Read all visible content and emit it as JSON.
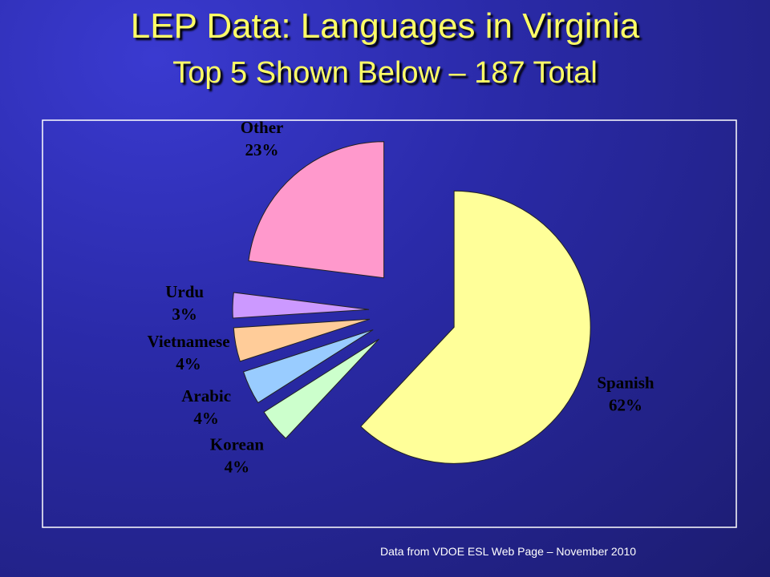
{
  "chart_data": {
    "type": "pie",
    "title": "LEP Data: Languages in Virginia",
    "subtitle": "Top 5 Shown Below – 187 Total",
    "categories": [
      "Spanish",
      "Korean",
      "Arabic",
      "Vietnamese",
      "Urdu",
      "Other"
    ],
    "values": [
      62,
      4,
      4,
      4,
      3,
      23
    ],
    "value_labels": [
      "62%",
      "4%",
      "4%",
      "4%",
      "3%",
      "23%"
    ],
    "colors": [
      "#ffff99",
      "#ccffcc",
      "#99ccff",
      "#ffcc99",
      "#cc99ff",
      "#ff99cc"
    ],
    "source": "Data from VDOE ESL Web Page – November 2010"
  }
}
